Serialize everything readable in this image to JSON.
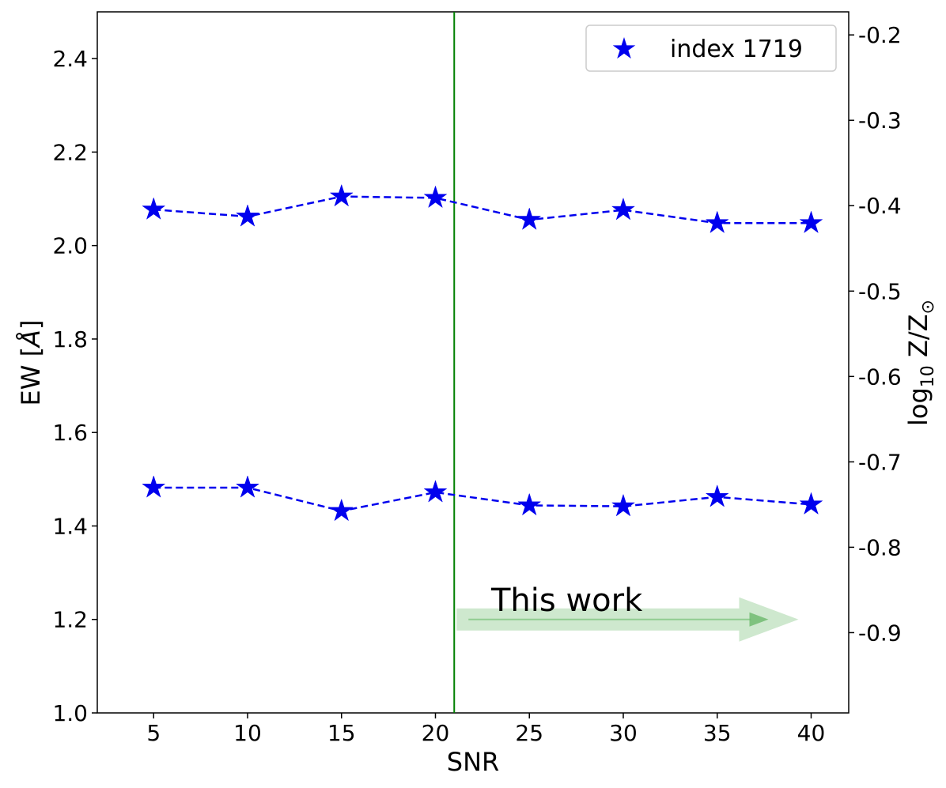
{
  "chart_data": {
    "type": "line",
    "x": [
      5,
      10,
      15,
      20,
      25,
      30,
      35,
      40
    ],
    "xlabel": "SNR",
    "ylabel": "EW [Å]",
    "ylabel_right": "log10 Z/Z⊙",
    "xlim": [
      2,
      42
    ],
    "ylim": [
      1.0,
      2.5
    ],
    "ylim_right": [
      -0.994,
      -0.173
    ],
    "xticks": [
      5,
      10,
      15,
      20,
      25,
      30,
      35,
      40
    ],
    "yticks": [
      1.0,
      1.2,
      1.4,
      1.6,
      1.8,
      2.0,
      2.2,
      2.4
    ],
    "yticks_right": [
      -0.9,
      -0.8,
      -0.7,
      -0.6,
      -0.5,
      -0.4,
      -0.3,
      -0.2
    ],
    "series": [
      {
        "name": "index 1719",
        "values": [
          2.077,
          2.062,
          2.105,
          2.102,
          2.055,
          2.076,
          2.048,
          2.048
        ],
        "color": "#0000ee",
        "marker": "star",
        "linestyle": "dashed"
      },
      {
        "name": "index 1719",
        "values": [
          1.482,
          1.482,
          1.432,
          1.472,
          1.444,
          1.442,
          1.462,
          1.446
        ],
        "color": "#0000ee",
        "marker": "star",
        "linestyle": "dashed"
      }
    ],
    "vline": {
      "x": 21,
      "color": "#008000"
    },
    "annotation": {
      "text": "This work",
      "arrow_from_x": 21,
      "arrow_to_x": 40,
      "arrow_y": 1.2,
      "arrow_color": "#8bc98b"
    },
    "legend": {
      "label": "index 1719",
      "placement": "top-right"
    },
    "grid": false
  }
}
